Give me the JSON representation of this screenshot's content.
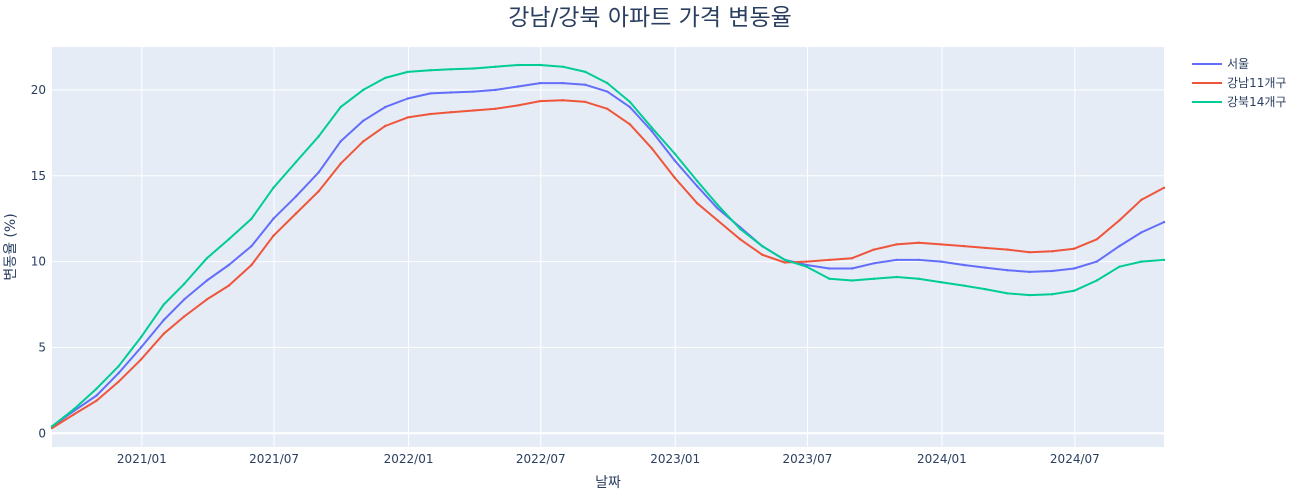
{
  "chart_data": {
    "type": "line",
    "title": "강남/강북 아파트 가격 변동율",
    "xlabel": "날짜",
    "ylabel": "변동율 (%)",
    "x_range": [
      "2020-08-31",
      "2024-10-31"
    ],
    "ylim": [
      -0.8,
      22.5
    ],
    "x_ticks": [
      {
        "date": "2021-01-01",
        "label": "2021/01"
      },
      {
        "date": "2021-07-01",
        "label": "2021/07"
      },
      {
        "date": "2022-01-01",
        "label": "2022/01"
      },
      {
        "date": "2022-07-01",
        "label": "2022/07"
      },
      {
        "date": "2023-01-01",
        "label": "2023/01"
      },
      {
        "date": "2023-07-01",
        "label": "2023/07"
      },
      {
        "date": "2024-01-01",
        "label": "2024/01"
      },
      {
        "date": "2024-07-01",
        "label": "2024/07"
      }
    ],
    "y_ticks": [
      0,
      5,
      10,
      15,
      20
    ],
    "grid": true,
    "legend_position": "right",
    "x": [
      "2020-08-31",
      "2020-09-30",
      "2020-10-31",
      "2020-11-30",
      "2020-12-31",
      "2021-01-31",
      "2021-02-28",
      "2021-03-31",
      "2021-04-30",
      "2021-05-31",
      "2021-06-30",
      "2021-07-31",
      "2021-08-31",
      "2021-09-30",
      "2021-10-31",
      "2021-11-30",
      "2021-12-31",
      "2022-01-31",
      "2022-02-28",
      "2022-03-31",
      "2022-04-30",
      "2022-05-31",
      "2022-06-30",
      "2022-07-31",
      "2022-08-31",
      "2022-09-30",
      "2022-10-31",
      "2022-11-30",
      "2022-12-31",
      "2023-01-31",
      "2023-02-28",
      "2023-03-31",
      "2023-04-30",
      "2023-05-31",
      "2023-06-30",
      "2023-07-31",
      "2023-08-31",
      "2023-09-30",
      "2023-10-31",
      "2023-11-30",
      "2023-12-31",
      "2024-01-31",
      "2024-02-29",
      "2024-03-31",
      "2024-04-30",
      "2024-05-31",
      "2024-06-30",
      "2024-07-31",
      "2024-08-31",
      "2024-09-30",
      "2024-10-31"
    ],
    "series": [
      {
        "name": "서울",
        "color": "#636efa",
        "values": [
          0.4,
          1.3,
          2.2,
          3.5,
          5.0,
          6.6,
          7.8,
          8.9,
          9.8,
          10.9,
          12.5,
          13.8,
          15.2,
          17.0,
          18.2,
          19.0,
          19.5,
          19.8,
          19.85,
          19.9,
          20.0,
          20.2,
          20.4,
          20.4,
          20.3,
          19.9,
          19.0,
          17.6,
          15.9,
          14.4,
          13.1,
          12.0,
          10.9,
          10.1,
          9.8,
          9.6,
          9.6,
          9.9,
          10.1,
          10.1,
          10.0,
          9.8,
          9.65,
          9.5,
          9.4,
          9.45,
          9.6,
          10.0,
          10.9,
          11.7,
          12.3
        ]
      },
      {
        "name": "강남11개구",
        "color": "#ef553b",
        "values": [
          0.3,
          1.1,
          1.9,
          3.0,
          4.3,
          5.8,
          6.8,
          7.8,
          8.6,
          9.8,
          11.5,
          12.8,
          14.1,
          15.7,
          17.0,
          17.9,
          18.4,
          18.6,
          18.7,
          18.8,
          18.9,
          19.1,
          19.35,
          19.4,
          19.3,
          18.9,
          18.0,
          16.6,
          14.9,
          13.4,
          12.4,
          11.3,
          10.4,
          9.95,
          10.0,
          10.1,
          10.2,
          10.7,
          11.0,
          11.1,
          11.0,
          10.9,
          10.8,
          10.7,
          10.55,
          10.6,
          10.75,
          11.3,
          12.4,
          13.6,
          14.3
        ]
      },
      {
        "name": "강북14개구",
        "color": "#00cc96",
        "values": [
          0.4,
          1.4,
          2.6,
          3.9,
          5.6,
          7.5,
          8.7,
          10.2,
          11.3,
          12.5,
          14.3,
          15.8,
          17.3,
          19.0,
          20.0,
          20.7,
          21.05,
          21.15,
          21.2,
          21.25,
          21.35,
          21.45,
          21.45,
          21.35,
          21.05,
          20.4,
          19.3,
          17.8,
          16.3,
          14.7,
          13.3,
          11.9,
          10.9,
          10.1,
          9.7,
          9.0,
          8.9,
          9.0,
          9.1,
          9.0,
          8.8,
          8.6,
          8.4,
          8.15,
          8.05,
          8.1,
          8.3,
          8.9,
          9.7,
          10.0,
          10.1
        ]
      }
    ]
  }
}
